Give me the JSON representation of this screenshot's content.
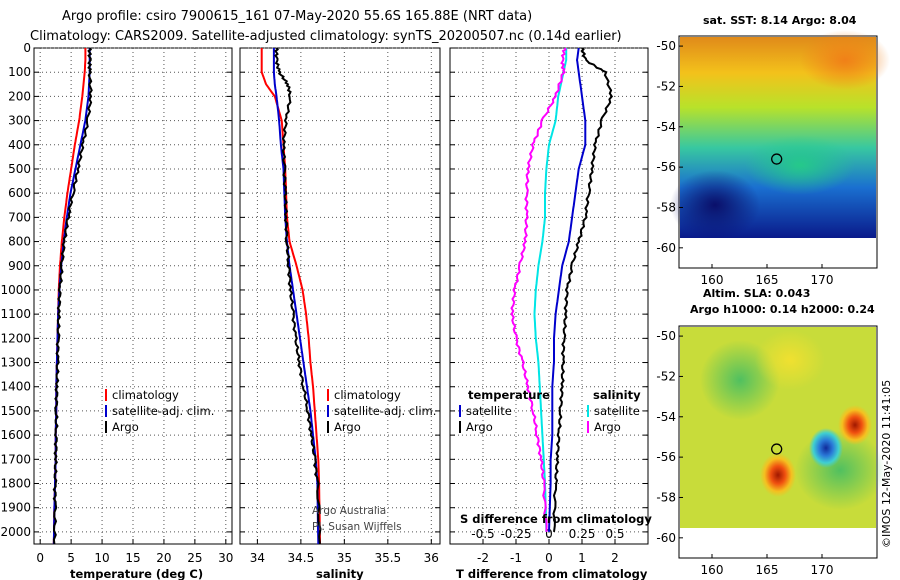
{
  "header": {
    "line1": "Argo profile: csiro 7900615_161 07-May-2020 55.6S 165.88E (NRT data)",
    "line2": "Climatology: CARS2009. Satellite-adjusted climatology: synTS_20200507.nc (0.14d earlier)"
  },
  "colors": {
    "climatology": "#ff0000",
    "satellite": "#0000cc",
    "argo": "#000000",
    "s_satellite": "#00e5e5",
    "s_argo": "#ff00ff"
  },
  "credit": {
    "line1": "Argo Australia",
    "line2": "PI: Susan Wijffels"
  },
  "timestamp": "©IMOS 12-May-2020 11:41:05",
  "chart_data": [
    {
      "type": "line",
      "id": "temperature",
      "xlabel": "temperature (deg C)",
      "xlim": [
        -1,
        31
      ],
      "ylim": [
        2050,
        0
      ],
      "xticks": [
        0,
        5,
        10,
        15,
        20,
        25,
        30
      ],
      "yticks": [
        0,
        100,
        200,
        300,
        400,
        500,
        600,
        700,
        800,
        900,
        1000,
        1100,
        1200,
        1300,
        1400,
        1500,
        1600,
        1700,
        1800,
        1900,
        2000
      ],
      "legend": [
        "climatology",
        "satellite-adj. clim.",
        "Argo"
      ],
      "series": [
        {
          "name": "climatology",
          "color": "#ff0000",
          "x": [
            7.3,
            7.3,
            7.2,
            6.8,
            6.3,
            5.6,
            5.0,
            4.4,
            3.9,
            3.5,
            3.2,
            3.0,
            2.9,
            2.8,
            2.7,
            2.6,
            2.6,
            2.5,
            2.5,
            2.4,
            2.3,
            2.2
          ],
          "y": [
            0,
            50,
            100,
            200,
            300,
            400,
            500,
            600,
            700,
            800,
            900,
            1000,
            1100,
            1200,
            1300,
            1400,
            1500,
            1600,
            1700,
            1800,
            1900,
            2050
          ]
        },
        {
          "name": "satellite-adj. clim.",
          "color": "#0000cc",
          "x": [
            8.0,
            8.0,
            8.0,
            7.8,
            7.3,
            6.5,
            5.7,
            4.9,
            4.3,
            3.8,
            3.4,
            3.1,
            2.9,
            2.8,
            2.7,
            2.6,
            2.6,
            2.5,
            2.5,
            2.4,
            2.3,
            2.2
          ],
          "y": [
            0,
            50,
            100,
            200,
            300,
            400,
            500,
            600,
            700,
            800,
            900,
            1000,
            1100,
            1200,
            1300,
            1400,
            1500,
            1600,
            1700,
            1800,
            1900,
            2050
          ]
        },
        {
          "name": "Argo",
          "color": "#000000",
          "x": [
            8.0,
            8.0,
            8.0,
            8.2,
            7.7,
            6.9,
            6.1,
            5.3,
            4.5,
            3.9,
            3.5,
            3.2,
            3.0,
            2.9,
            2.8,
            2.7,
            2.6,
            2.6,
            2.5,
            2.4,
            2.4,
            2.3
          ],
          "y": [
            0,
            50,
            100,
            200,
            300,
            400,
            500,
            600,
            700,
            800,
            900,
            1000,
            1100,
            1200,
            1300,
            1400,
            1500,
            1600,
            1700,
            1800,
            1900,
            2050
          ]
        }
      ]
    },
    {
      "type": "line",
      "id": "salinity",
      "xlabel": "salinity",
      "xlim": [
        33.8,
        36.1
      ],
      "ylim": [
        2050,
        0
      ],
      "xticks": [
        34,
        34.5,
        35,
        35.5,
        36
      ],
      "legend": [
        "climatology",
        "satellite-adj. clim.",
        "Argo"
      ],
      "series": [
        {
          "name": "climatology",
          "color": "#ff0000",
          "x": [
            34.05,
            34.05,
            34.05,
            34.1,
            34.2,
            34.28,
            34.3,
            34.32,
            34.33,
            34.34,
            34.37,
            34.45,
            34.52,
            34.56,
            34.59,
            34.61,
            34.64,
            34.66,
            34.68,
            34.7,
            34.71,
            34.72
          ],
          "y": [
            0,
            50,
            100,
            150,
            200,
            300,
            400,
            500,
            600,
            700,
            800,
            900,
            1000,
            1100,
            1200,
            1300,
            1400,
            1500,
            1600,
            1700,
            1800,
            2050
          ]
        },
        {
          "name": "satellite-adj. clim.",
          "color": "#0000cc",
          "x": [
            34.19,
            34.19,
            34.19,
            34.2,
            34.22,
            34.25,
            34.27,
            34.3,
            34.31,
            34.32,
            34.34,
            34.37,
            34.41,
            34.45,
            34.49,
            34.53,
            34.57,
            34.61,
            34.64,
            34.67,
            34.69,
            34.7
          ],
          "y": [
            0,
            50,
            100,
            150,
            200,
            300,
            400,
            500,
            600,
            700,
            800,
            900,
            1000,
            1100,
            1200,
            1300,
            1400,
            1500,
            1600,
            1700,
            1800,
            2050
          ]
        },
        {
          "name": "Argo",
          "color": "#000000",
          "x": [
            34.22,
            34.22,
            34.25,
            34.35,
            34.38,
            34.33,
            34.3,
            34.31,
            34.32,
            34.33,
            34.34,
            34.36,
            34.38,
            34.41,
            34.44,
            34.48,
            34.53,
            34.58,
            34.62,
            34.66,
            34.69,
            34.72
          ],
          "y": [
            0,
            50,
            100,
            150,
            200,
            300,
            400,
            500,
            600,
            700,
            800,
            900,
            1000,
            1100,
            1200,
            1300,
            1400,
            1500,
            1600,
            1700,
            1800,
            2050
          ]
        }
      ]
    },
    {
      "type": "line",
      "id": "difference",
      "xlabel": "T difference from climatology",
      "xlabel2": "S difference from climatology",
      "xlim": [
        -3,
        3
      ],
      "x2lim": [
        -0.75,
        0.75
      ],
      "ylim": [
        2050,
        0
      ],
      "xticks": [
        -2,
        -1,
        0,
        1,
        2
      ],
      "x2ticks": [
        -0.5,
        -0.25,
        0,
        0.25,
        0.5
      ],
      "legend_left_title": "temperature",
      "legend_right_title": "salinity",
      "legend_left": [
        "satellite",
        "Argo"
      ],
      "legend_right": [
        "satellite",
        "Argo"
      ],
      "series": [
        {
          "name": "T satellite",
          "color": "#0000cc",
          "axis": "T",
          "x": [
            0.9,
            0.85,
            0.9,
            1.0,
            1.1,
            1.1,
            0.9,
            0.8,
            0.7,
            0.6,
            0.4,
            0.3,
            0.2,
            0.15,
            0.15,
            0.1,
            0.1,
            0.1,
            0.05,
            0.05,
            0.0
          ],
          "y": [
            0,
            50,
            100,
            200,
            300,
            400,
            500,
            600,
            700,
            800,
            900,
            1000,
            1100,
            1200,
            1300,
            1400,
            1500,
            1600,
            1700,
            1800,
            2000
          ]
        },
        {
          "name": "T Argo",
          "color": "#000000",
          "axis": "T",
          "x": [
            1.0,
            1.1,
            1.7,
            1.9,
            1.6,
            1.4,
            1.3,
            1.2,
            1.1,
            0.9,
            0.7,
            0.55,
            0.5,
            0.45,
            0.42,
            0.4,
            0.35,
            0.3,
            0.25,
            0.2,
            0.15
          ],
          "y": [
            0,
            50,
            100,
            200,
            300,
            400,
            500,
            600,
            700,
            800,
            900,
            1000,
            1100,
            1200,
            1300,
            1400,
            1500,
            1600,
            1700,
            1800,
            2000
          ]
        },
        {
          "name": "S satellite",
          "color": "#00e5e5",
          "axis": "S",
          "x": [
            0.13,
            0.13,
            0.11,
            0.07,
            0.05,
            0.0,
            -0.02,
            -0.03,
            -0.03,
            -0.05,
            -0.08,
            -0.1,
            -0.11,
            -0.1,
            -0.08,
            -0.07,
            -0.06,
            -0.05,
            -0.04,
            -0.03,
            -0.02
          ],
          "y": [
            0,
            50,
            100,
            200,
            300,
            400,
            500,
            600,
            700,
            800,
            900,
            1000,
            1100,
            1200,
            1300,
            1400,
            1500,
            1600,
            1700,
            1800,
            2000
          ]
        },
        {
          "name": "S Argo",
          "color": "#ff00ff",
          "axis": "S",
          "x": [
            0.12,
            0.1,
            0.11,
            0.05,
            -0.05,
            -0.12,
            -0.16,
            -0.17,
            -0.17,
            -0.18,
            -0.22,
            -0.26,
            -0.28,
            -0.25,
            -0.2,
            -0.16,
            -0.12,
            -0.09,
            -0.06,
            -0.04,
            -0.02
          ],
          "y": [
            0,
            50,
            100,
            200,
            300,
            400,
            500,
            600,
            700,
            800,
            900,
            1000,
            1100,
            1200,
            1300,
            1400,
            1500,
            1600,
            1700,
            1800,
            2000
          ]
        }
      ]
    },
    {
      "type": "heatmap",
      "id": "sst-map",
      "title": "sat. SST: 8.14 Argo: 8.04",
      "xlim": [
        157,
        175
      ],
      "ylim": [
        -61,
        -49.5
      ],
      "xticks": [
        160,
        165,
        170
      ],
      "yticks": [
        -50,
        -52,
        -54,
        -56,
        -58,
        -60
      ],
      "marker": {
        "lon": 165.88,
        "lat": -55.6
      }
    },
    {
      "type": "heatmap",
      "id": "sla-map",
      "title": "Altim. SLA: 0.043",
      "subtitle": "Argo h1000: 0.14 h2000: 0.24",
      "xlim": [
        157,
        175
      ],
      "ylim": [
        -61,
        -49.5
      ],
      "xticks": [
        160,
        165,
        170
      ],
      "yticks": [
        -50,
        -52,
        -54,
        -56,
        -58,
        -60
      ],
      "marker": {
        "lon": 165.88,
        "lat": -55.6
      }
    }
  ]
}
